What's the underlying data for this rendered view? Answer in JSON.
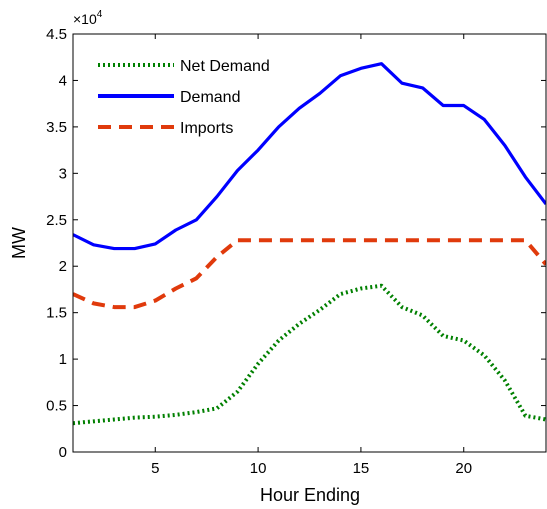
{
  "chart_data": {
    "type": "line",
    "title": "",
    "xlabel": "Hour Ending",
    "ylabel": "MW",
    "y_multiplier_base": "×10",
    "y_multiplier_exp": "4",
    "xlim": [
      1,
      24
    ],
    "ylim": [
      0,
      45000
    ],
    "xticks": [
      5,
      10,
      15,
      20
    ],
    "xtick_labels": [
      "5",
      "10",
      "15",
      "20"
    ],
    "yticks": [
      0,
      5000,
      10000,
      15000,
      20000,
      25000,
      30000,
      35000,
      40000,
      45000
    ],
    "ytick_labels": [
      "0",
      "0.5",
      "1",
      "1.5",
      "2",
      "2.5",
      "3",
      "3.5",
      "4",
      "4.5"
    ],
    "grid": false,
    "legend_position": "top-left",
    "x": [
      1,
      2,
      3,
      4,
      5,
      6,
      7,
      8,
      9,
      10,
      11,
      12,
      13,
      14,
      15,
      16,
      17,
      18,
      19,
      20,
      21,
      22,
      23,
      24
    ],
    "series": [
      {
        "name": "Net Demand",
        "color": "#008000",
        "style": "dotted",
        "values": [
          3100,
          3300,
          3500,
          3700,
          3800,
          4000,
          4300,
          4700,
          6500,
          9500,
          12000,
          13800,
          15300,
          17000,
          17600,
          17900,
          15600,
          14700,
          12500,
          12000,
          10400,
          7700,
          3900,
          3500
        ]
      },
      {
        "name": "Demand",
        "color": "#0000ff",
        "style": "solid",
        "values": [
          23400,
          22300,
          21900,
          21900,
          22400,
          23900,
          25000,
          27500,
          30300,
          32500,
          35000,
          37000,
          38600,
          40500,
          41300,
          41800,
          39700,
          39200,
          37300,
          37300,
          35800,
          33000,
          29600,
          26700
        ]
      },
      {
        "name": "Imports",
        "color": "#e03a0c",
        "style": "dashed",
        "values": [
          17000,
          16000,
          15600,
          15600,
          16300,
          17600,
          18700,
          21000,
          22800,
          22800,
          22800,
          22800,
          22800,
          22800,
          22800,
          22800,
          22800,
          22800,
          22800,
          22800,
          22800,
          22800,
          22800,
          20200
        ]
      }
    ]
  }
}
